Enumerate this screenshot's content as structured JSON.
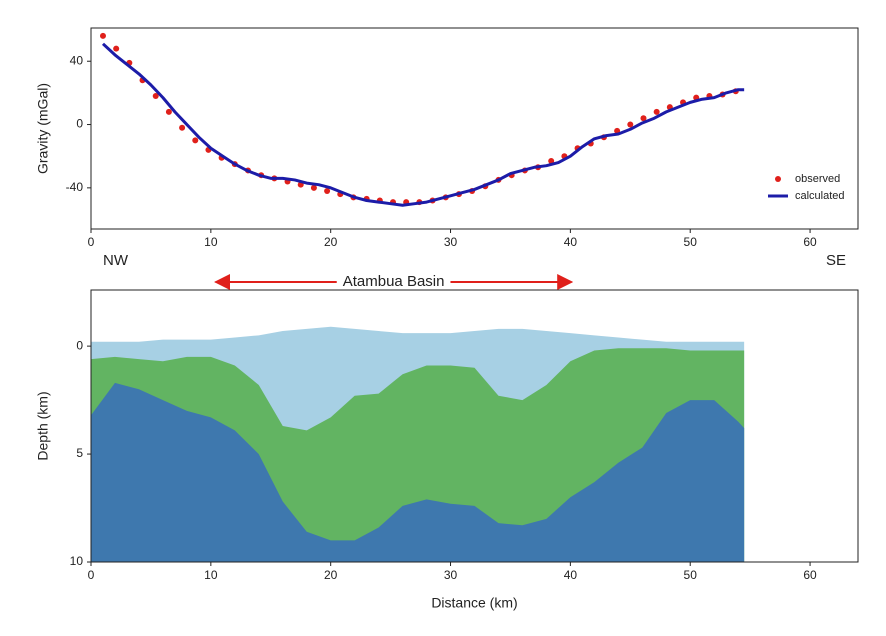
{
  "chart_data": [
    {
      "type": "line",
      "ylabel": "Gravity (mGal)",
      "xlim": [
        0,
        64
      ],
      "xticks": [
        0,
        10,
        20,
        30,
        40,
        50,
        60
      ],
      "ylim": [
        -66,
        61
      ],
      "yticks": [
        -40,
        0,
        40
      ],
      "legend": "lower right",
      "series": [
        {
          "name": "observed",
          "type": "scatter",
          "color": "#e0201b",
          "x": [
            1,
            2.1,
            3.2,
            4.3,
            5.4,
            6.5,
            7.6,
            8.7,
            9.8,
            10.9,
            12,
            13.1,
            14.2,
            15.3,
            16.4,
            17.5,
            18.6,
            19.7,
            20.8,
            21.9,
            23,
            24.1,
            25.2,
            26.3,
            27.4,
            28.5,
            29.6,
            30.7,
            31.8,
            32.9,
            34,
            35.1,
            36.2,
            37.3,
            38.4,
            39.5,
            40.6,
            41.7,
            42.8,
            43.9,
            45,
            46.1,
            47.2,
            48.3,
            49.4,
            50.5,
            51.6,
            52.7,
            53.8
          ],
          "values": [
            56,
            48,
            39,
            28,
            18,
            8,
            -2,
            -10,
            -16,
            -21,
            -25,
            -29,
            -32,
            -34,
            -36,
            -38,
            -40,
            -42,
            -44,
            -46,
            -47,
            -48,
            -49,
            -49,
            -49,
            -48,
            -46,
            -44,
            -42,
            -39,
            -35,
            -32,
            -29,
            -27,
            -23,
            -20,
            -15,
            -12,
            -8,
            -4,
            0,
            4,
            8,
            11,
            14,
            17,
            18,
            19,
            21
          ]
        },
        {
          "name": "calculated",
          "type": "line",
          "color": "#1c1ca8",
          "x": [
            1,
            2,
            3,
            4,
            5,
            6,
            7,
            8,
            9,
            10,
            11,
            12,
            13,
            14,
            15,
            16,
            17,
            18,
            19,
            20,
            21,
            22,
            23,
            24,
            25,
            26,
            27,
            28,
            29,
            30,
            31,
            32,
            33,
            34,
            35,
            36,
            37,
            38,
            39,
            40,
            41,
            42,
            43,
            44,
            45,
            46,
            47,
            48,
            49,
            50,
            51,
            52,
            53,
            54,
            54.5
          ],
          "values": [
            51,
            44,
            38,
            32,
            25,
            17,
            8,
            0,
            -8,
            -15,
            -20,
            -25,
            -29,
            -32,
            -34,
            -34,
            -35,
            -37,
            -38,
            -40,
            -43,
            -46,
            -48,
            -49,
            -50,
            -51,
            -50,
            -49,
            -47,
            -45,
            -43,
            -41,
            -38,
            -35,
            -31,
            -29,
            -27,
            -26,
            -24,
            -20,
            -14,
            -9,
            -7,
            -6,
            -3,
            1,
            4,
            8,
            11,
            14,
            16,
            17,
            20,
            22,
            22
          ]
        }
      ]
    },
    {
      "type": "area",
      "xlabel": "Distance (km)",
      "ylabel": "Depth (km)",
      "xlim": [
        0,
        64
      ],
      "xticks": [
        0,
        10,
        20,
        30,
        40,
        50,
        60
      ],
      "ylim": [
        10,
        -2.6
      ],
      "yticks": [
        0,
        5,
        10
      ],
      "annotations": [
        {
          "text": "NW"
        },
        {
          "text": "SE"
        },
        {
          "text": "Atambua Basin",
          "x": [
            10.4,
            40.1
          ]
        }
      ],
      "x": [
        0,
        2,
        4,
        6,
        8,
        10,
        12,
        14,
        16,
        18,
        20,
        22,
        24,
        26,
        28,
        30,
        32,
        34,
        36,
        38,
        40,
        42,
        44,
        46,
        48,
        50,
        52,
        54,
        54.5
      ],
      "series": [
        {
          "color": "#a7d0e4",
          "values": [
            -0.2,
            -0.2,
            -0.2,
            -0.3,
            -0.3,
            -0.3,
            -0.4,
            -0.5,
            -0.7,
            -0.8,
            -0.9,
            -0.8,
            -0.7,
            -0.6,
            -0.6,
            -0.6,
            -0.7,
            -0.8,
            -0.8,
            -0.7,
            -0.6,
            -0.5,
            -0.4,
            -0.3,
            -0.2,
            -0.2,
            -0.2,
            -0.2,
            -0.2
          ]
        },
        {
          "color": "#62b462",
          "values": [
            0.6,
            0.5,
            0.6,
            0.7,
            0.5,
            0.5,
            0.9,
            1.8,
            3.7,
            3.9,
            3.3,
            2.3,
            2.2,
            1.3,
            0.9,
            0.9,
            1.0,
            2.3,
            2.5,
            1.8,
            0.7,
            0.2,
            0.1,
            0.1,
            0.1,
            0.2,
            0.2,
            0.2,
            0.2
          ]
        },
        {
          "color": "#3e78ae",
          "values": [
            3.2,
            1.7,
            2.0,
            2.5,
            3.0,
            3.3,
            3.9,
            5.0,
            7.2,
            8.6,
            9.0,
            9.0,
            8.4,
            7.4,
            7.1,
            7.3,
            7.4,
            8.2,
            8.3,
            8.0,
            7.0,
            6.3,
            5.4,
            4.7,
            3.1,
            2.5,
            2.5,
            3.5,
            3.8
          ]
        }
      ]
    }
  ]
}
